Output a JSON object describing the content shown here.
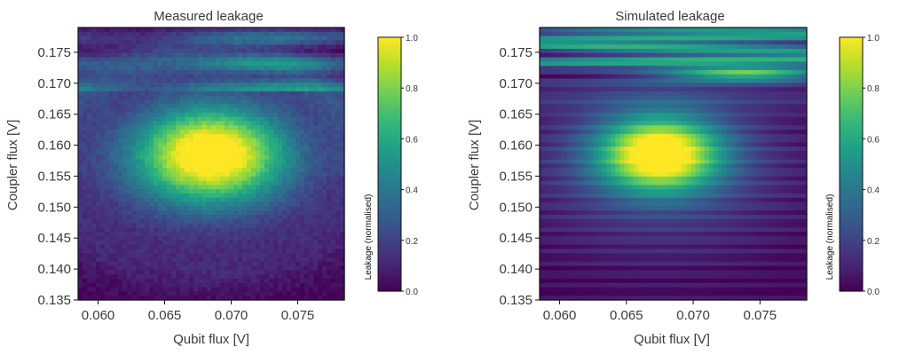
{
  "chart_data": [
    {
      "type": "heatmap",
      "title": "Measured leakage",
      "xlabel": "Qubit flux [V]",
      "ylabel": "Coupler flux [V]",
      "xlim": [
        0.0585,
        0.0785
      ],
      "ylim": [
        0.135,
        0.179
      ],
      "x_ticks": [
        0.06,
        0.065,
        0.07,
        0.075
      ],
      "x_tick_labels": [
        "0.060",
        "0.065",
        "0.070",
        "0.075"
      ],
      "y_ticks": [
        0.135,
        0.14,
        0.145,
        0.15,
        0.155,
        0.16,
        0.165,
        0.17,
        0.175
      ],
      "y_tick_labels": [
        "0.135",
        "0.140",
        "0.145",
        "0.150",
        "0.155",
        "0.160",
        "0.165",
        "0.170",
        "0.175"
      ],
      "peak": {
        "x": 0.0685,
        "y": 0.1585,
        "value": 1.0
      },
      "colorbar": {
        "label": "Leakage (normalised)",
        "colormap": "viridis",
        "range": [
          0.0,
          1.0
        ],
        "ticks": [
          0.0,
          0.2,
          0.4,
          0.6,
          0.8,
          1.0
        ],
        "tick_labels": [
          "0.0",
          "0.2",
          "0.4",
          "0.6",
          "0.8",
          "1.0"
        ]
      }
    },
    {
      "type": "heatmap",
      "title": "Simulated leakage",
      "xlabel": "Qubit flux [V]",
      "ylabel": "Coupler flux [V]",
      "xlim": [
        0.0585,
        0.0785
      ],
      "ylim": [
        0.135,
        0.179
      ],
      "x_ticks": [
        0.06,
        0.065,
        0.07,
        0.075
      ],
      "x_tick_labels": [
        "0.060",
        "0.065",
        "0.070",
        "0.075"
      ],
      "y_ticks": [
        0.135,
        0.14,
        0.145,
        0.15,
        0.155,
        0.16,
        0.165,
        0.17,
        0.175
      ],
      "y_tick_labels": [
        "0.135",
        "0.140",
        "0.145",
        "0.150",
        "0.155",
        "0.160",
        "0.165",
        "0.170",
        "0.175"
      ],
      "peak": {
        "x": 0.0675,
        "y": 0.1585,
        "value": 1.0
      },
      "colorbar": {
        "label": "Leakage (normalised)",
        "colormap": "viridis",
        "range": [
          0.0,
          1.0
        ],
        "ticks": [
          0.0,
          0.2,
          0.4,
          0.6,
          0.8,
          1.0
        ],
        "tick_labels": [
          "0.0",
          "0.2",
          "0.4",
          "0.6",
          "0.8",
          "1.0"
        ]
      }
    }
  ],
  "colors": {
    "viridis_stops": [
      "#440154",
      "#482878",
      "#3e4989",
      "#31688e",
      "#26828e",
      "#1f9e89",
      "#35b779",
      "#6ece58",
      "#b5de2b",
      "#fde725"
    ],
    "axis": "#111111",
    "text": "#3a3a3a"
  }
}
